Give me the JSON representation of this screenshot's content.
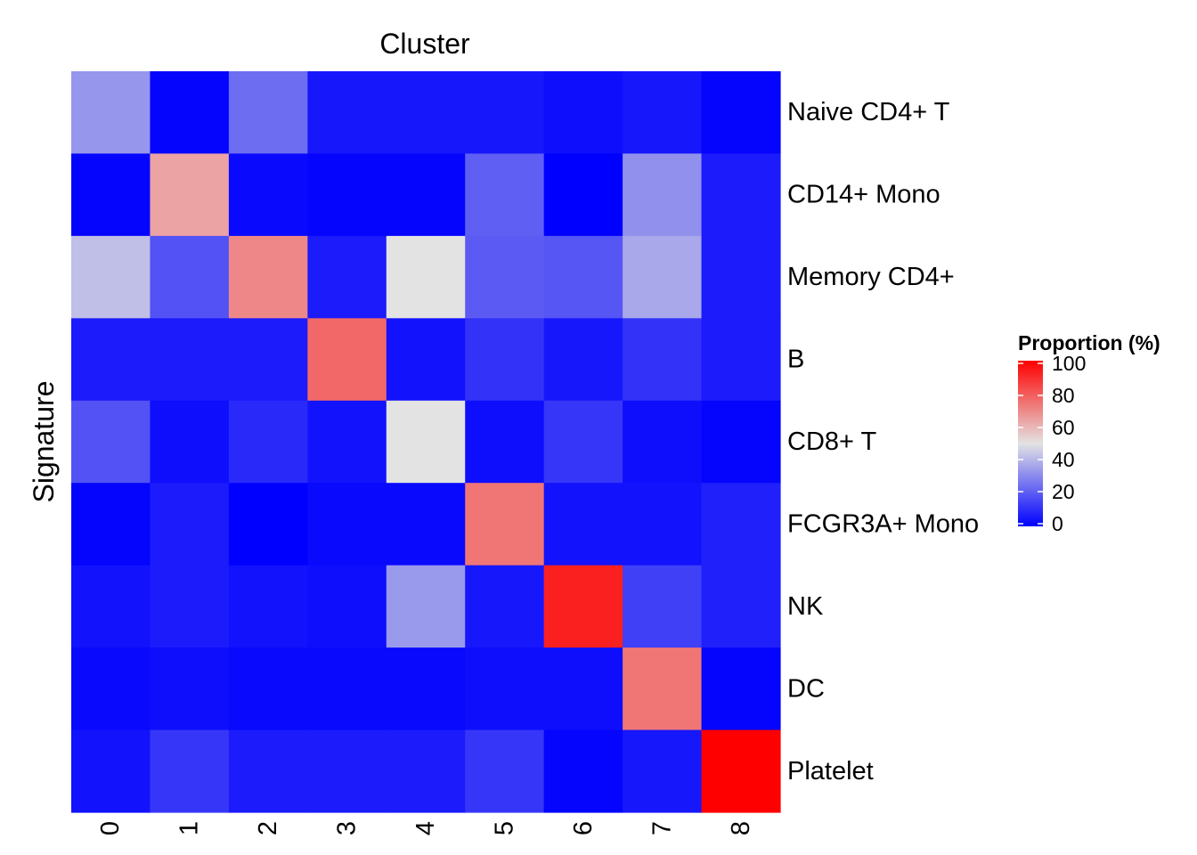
{
  "chart_data": {
    "type": "heatmap",
    "title": "Cluster",
    "xlabel": "",
    "ylabel": "Signature",
    "x_categories": [
      "0",
      "1",
      "2",
      "3",
      "4",
      "5",
      "6",
      "7",
      "8"
    ],
    "y_categories": [
      "Naive CD4+ T",
      "CD14+ Mono",
      "Memory CD4+",
      "B",
      "CD8+ T",
      "FCGR3A+ Mono",
      "NK",
      "DC",
      "Platelet"
    ],
    "values": [
      [
        33,
        1,
        24,
        5,
        5,
        5,
        3,
        5,
        1
      ],
      [
        1,
        64,
        2,
        1,
        1,
        21,
        0,
        32,
        6
      ],
      [
        42,
        18,
        70,
        6,
        50,
        20,
        19,
        37,
        6
      ],
      [
        6,
        6,
        6,
        77,
        4,
        11,
        5,
        11,
        6
      ],
      [
        18,
        3,
        9,
        4,
        50,
        3,
        12,
        3,
        1
      ],
      [
        1,
        6,
        0,
        2,
        2,
        74,
        4,
        4,
        7
      ],
      [
        4,
        6,
        4,
        3,
        34,
        5,
        93,
        14,
        7
      ],
      [
        2,
        3,
        2,
        2,
        2,
        3,
        3,
        74,
        1
      ],
      [
        4,
        12,
        6,
        6,
        6,
        12,
        1,
        5,
        100
      ]
    ],
    "legend": {
      "title": "Proportion (%)",
      "ticks": [
        "0",
        "20",
        "40",
        "60",
        "80",
        "100"
      ],
      "range": [
        0,
        100
      ],
      "placement": "right"
    },
    "colors": {
      "low": "#0000FF",
      "mid": "#E3E3E3",
      "high": "#FF0000",
      "midpoint": 50
    }
  }
}
